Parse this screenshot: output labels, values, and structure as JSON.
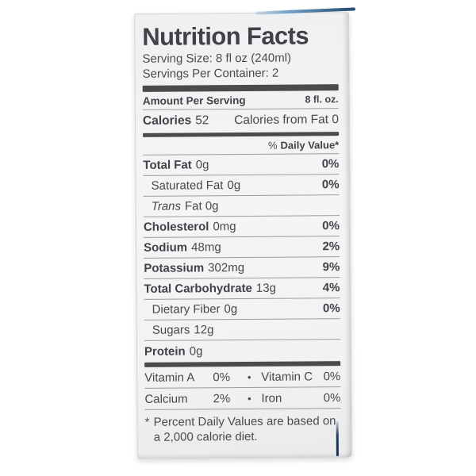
{
  "label": {
    "title": "Nutrition Facts",
    "serving_size": "Serving Size: 8 fl oz (240ml)",
    "servings_per_container": "Servings Per Container: 2",
    "amount_per_serving": "Amount Per Serving",
    "amount_right": "8 fl. oz.",
    "calories_label": "Calories",
    "calories_value": "52",
    "calories_from_fat": "Calories from Fat 0",
    "daily_value_prefix": "%",
    "daily_value_label": "Daily Value*",
    "rows": [
      {
        "name": "Total Fat",
        "amount": "0g",
        "dv": "0%"
      },
      {
        "name": "Saturated Fat",
        "amount": "0g",
        "dv": "0%"
      },
      {
        "name": "Trans",
        "amount": "Fat 0g",
        "dv": ""
      },
      {
        "name": "Cholesterol",
        "amount": "0mg",
        "dv": "0%"
      },
      {
        "name": "Sodium",
        "amount": "48mg",
        "dv": "2%"
      },
      {
        "name": "Potassium",
        "amount": "302mg",
        "dv": "9%"
      },
      {
        "name": "Total Carbohydrate",
        "amount": "13g",
        "dv": "4%"
      },
      {
        "name": "Dietary Fiber",
        "amount": "0g",
        "dv": "0%"
      },
      {
        "name": "Sugars",
        "amount": "12g",
        "dv": ""
      },
      {
        "name": "Protein",
        "amount": "0g",
        "dv": ""
      }
    ],
    "bullet": "•",
    "vitamin_rows": [
      {
        "left_name": "Vitamin A",
        "left_value": "0%",
        "right_name": "Vitamin C",
        "right_value": "0%"
      },
      {
        "left_name": "Calcium",
        "left_value": "2%",
        "right_name": "Iron",
        "right_value": "0%"
      }
    ],
    "footnote_marker": "*",
    "footnote_text": "Percent Daily Values are based on a 2,000 calorie diet."
  }
}
